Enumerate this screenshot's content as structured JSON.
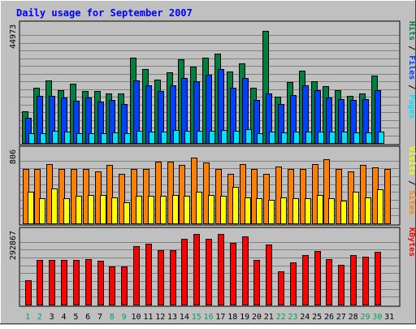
{
  "chart_data": {
    "type": "bar",
    "title": "Daily usage for September 2007",
    "categories": [
      "1",
      "2",
      "3",
      "4",
      "5",
      "6",
      "7",
      "8",
      "9",
      "10",
      "11",
      "12",
      "13",
      "14",
      "15",
      "16",
      "17",
      "18",
      "19",
      "20",
      "21",
      "22",
      "23",
      "24",
      "25",
      "26",
      "27",
      "28",
      "29",
      "30",
      "31"
    ],
    "weekend_days": [
      "1",
      "2",
      "8",
      "9",
      "15",
      "16",
      "22",
      "23",
      "29",
      "30"
    ],
    "panels": [
      {
        "name": "hits_files_pages",
        "ymax_label": "44973",
        "ylim": [
          0,
          44973
        ],
        "side_label": [
          {
            "text": "Pages",
            "color": "#00e0ff"
          },
          {
            "text": " / ",
            "color": "#000000"
          },
          {
            "text": "Files",
            "color": "#0040ff"
          },
          {
            "text": " / ",
            "color": "#000000"
          },
          {
            "text": "Hits",
            "color": "#008040"
          }
        ],
        "series": [
          {
            "name": "Hits",
            "color": "#008040",
            "values": [
              12500,
              21500,
              24400,
              20600,
              23100,
              20300,
              20300,
              19200,
              19200,
              33200,
              28700,
              24800,
              27700,
              32700,
              29800,
              33400,
              34800,
              27900,
              31000,
              21500,
              43800,
              18100,
              23600,
              28200,
              24100,
              22100,
              20600,
              18400,
              19400,
              26200,
              0
            ]
          },
          {
            "name": "Files",
            "color": "#0040ff",
            "values": [
              9900,
              18400,
              18400,
              17800,
              16500,
              17600,
              16200,
              16700,
              15100,
              24400,
              22500,
              20200,
              22400,
              25200,
              24200,
              26600,
              28700,
              21400,
              25400,
              16700,
              19400,
              15100,
              18700,
              22600,
              20600,
              17600,
              17000,
              16700,
              17200,
              20600,
              0
            ]
          },
          {
            "name": "Pages",
            "color": "#00e0ff",
            "values": [
              3800,
              3800,
              4800,
              4500,
              3800,
              3800,
              3800,
              4000,
              3800,
              4700,
              4500,
              4500,
              5000,
              4700,
              4700,
              4700,
              5200,
              4700,
              5400,
              3800,
              4300,
              4000,
              4300,
              4300,
              4300,
              4500,
              4500,
              4000,
              4000,
              4500,
              0
            ]
          }
        ]
      },
      {
        "name": "visits_sites",
        "ymax_label": "806",
        "ylim": [
          0,
          806
        ],
        "side_label": [
          {
            "text": "Sites",
            "color": "#ff8000"
          },
          {
            "text": " / ",
            "color": "#000000"
          },
          {
            "text": "Visits",
            "color": "#ffff00"
          }
        ],
        "series": [
          {
            "name": "Visits",
            "color": "#ff8000",
            "values": [
              621,
              621,
              678,
              621,
              621,
              621,
              593,
              664,
              564,
              621,
              621,
              707,
              707,
              664,
              750,
              693,
              621,
              564,
              678,
              621,
              564,
              650,
              621,
              621,
              678,
              736,
              621,
              593,
              664,
              636,
              621
            ]
          },
          {
            "name": "Sites",
            "color": "#ffff00",
            "values": [
              357,
              286,
              400,
              286,
              314,
              328,
              328,
              300,
              243,
              314,
              314,
              314,
              328,
              314,
              357,
              328,
              314,
              414,
              300,
              286,
              271,
              300,
              286,
              286,
              328,
              286,
              257,
              357,
              300,
              386,
              0
            ]
          }
        ]
      },
      {
        "name": "kbytes",
        "ymax_label": "292867",
        "ylim": [
          0,
          292867
        ],
        "side_label": [
          {
            "text": "KBytes",
            "color": "#ff0000"
          }
        ],
        "series": [
          {
            "name": "KBytes",
            "color": "#ff0000",
            "values": [
              99600,
              185900,
              183800,
              183800,
              185900,
              190000,
              181700,
              159200,
              159200,
              243200,
              251300,
              224000,
              224000,
              272000,
              291300,
              272000,
              291300,
              256000,
              283000,
              185900,
              249300,
              136600,
              176000,
              205000,
              221000,
              188000,
              163800,
              205000,
              198200,
              218600,
              0
            ]
          }
        ]
      }
    ]
  },
  "colors": {
    "background": "#c0c0c0",
    "plot": "#c0c0c0",
    "border": "#000000",
    "grid": "#808080",
    "title": "#0000ff",
    "axis_text": "#000000",
    "weekend_text": "#00a060"
  }
}
